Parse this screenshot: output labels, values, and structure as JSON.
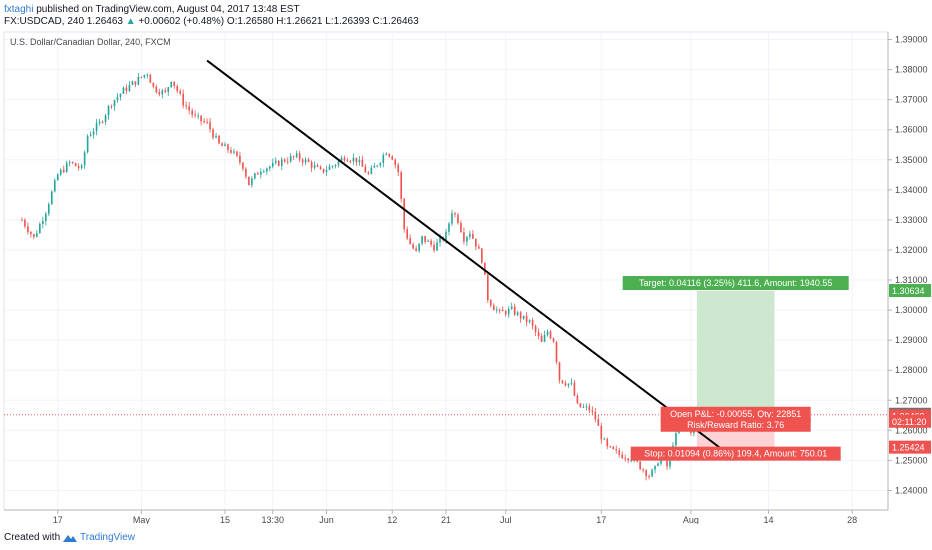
{
  "header": {
    "author": "fxtaghi",
    "published_text": "published on TradingView.com, August 04, 2017 13:48 EST",
    "symbol_line": "FX:USDCAD, 240  1.26463",
    "change_arrow": "▲",
    "change": "+0.00602 (+0.48%)",
    "ohlc": "O:1.26580 H:1.26621 L:1.26393 C:1.26463"
  },
  "pane_title": "U.S. Dollar/Canadian Dollar, 240, FXCM",
  "footer": {
    "created_with": "Created with",
    "brand": "TradingView"
  },
  "colors": {
    "up": "#26a69a",
    "down": "#ef5350",
    "target": "#c8e6c9",
    "stop": "#ffcdd2",
    "trendline": "#000000"
  },
  "chart_data": {
    "type": "candlestick",
    "title": "U.S. Dollar/Canadian Dollar, 240, FXCM",
    "ylim": [
      1.2335,
      1.3925
    ],
    "y_ticks": [
      "1.24000",
      "1.25000",
      "1.26000",
      "1.27000",
      "1.28000",
      "1.29000",
      "1.30000",
      "1.31000",
      "1.32000",
      "1.33000",
      "1.34000",
      "1.35000",
      "1.36000",
      "1.37000",
      "1.38000",
      "1.39000"
    ],
    "x_ticks": [
      {
        "label": "17",
        "day": 17
      },
      {
        "label": "May",
        "day": 31
      },
      {
        "label": "15",
        "day": 45
      },
      {
        "label": "13:30",
        "day": 53
      },
      {
        "label": "Jun",
        "day": 62
      },
      {
        "label": "12",
        "day": 73
      },
      {
        "label": "21",
        "day": 82
      },
      {
        "label": "Jul",
        "day": 92
      },
      {
        "label": "17",
        "day": 108
      },
      {
        "label": "Aug",
        "day": 123
      },
      {
        "label": "14",
        "day": 136
      },
      {
        "label": "28",
        "day": 150
      }
    ],
    "price_path": [
      [
        11,
        1.33
      ],
      [
        13,
        1.324
      ],
      [
        15,
        1.333
      ],
      [
        17,
        1.345
      ],
      [
        19,
        1.349
      ],
      [
        21,
        1.347
      ],
      [
        22,
        1.358
      ],
      [
        24,
        1.362
      ],
      [
        26,
        1.369
      ],
      [
        28,
        1.373
      ],
      [
        30,
        1.376
      ],
      [
        32,
        1.379
      ],
      [
        33,
        1.374
      ],
      [
        35,
        1.372
      ],
      [
        36,
        1.377
      ],
      [
        38,
        1.369
      ],
      [
        40,
        1.364
      ],
      [
        42,
        1.362
      ],
      [
        44,
        1.355
      ],
      [
        46,
        1.353
      ],
      [
        48,
        1.348
      ],
      [
        49,
        1.342
      ],
      [
        51,
        1.347
      ],
      [
        53,
        1.348
      ],
      [
        55,
        1.35
      ],
      [
        57,
        1.351
      ],
      [
        59,
        1.349
      ],
      [
        61,
        1.346
      ],
      [
        63,
        1.348
      ],
      [
        65,
        1.351
      ],
      [
        67,
        1.35
      ],
      [
        69,
        1.345
      ],
      [
        71,
        1.35
      ],
      [
        72,
        1.353
      ],
      [
        73,
        1.351
      ],
      [
        74,
        1.346
      ],
      [
        75,
        1.327
      ],
      [
        76,
        1.322
      ],
      [
        77,
        1.319
      ],
      [
        78,
        1.324
      ],
      [
        80,
        1.321
      ],
      [
        82,
        1.325
      ],
      [
        83,
        1.333
      ],
      [
        84,
        1.33
      ],
      [
        85,
        1.324
      ],
      [
        86,
        1.326
      ],
      [
        87,
        1.322
      ],
      [
        88,
        1.317
      ],
      [
        89,
        1.304
      ],
      [
        90,
        1.301
      ],
      [
        91,
        1.299
      ],
      [
        93,
        1.3
      ],
      [
        95,
        1.297
      ],
      [
        96,
        1.296
      ],
      [
        98,
        1.289
      ],
      [
        99,
        1.293
      ],
      [
        100,
        1.29
      ],
      [
        101,
        1.277
      ],
      [
        103,
        1.275
      ],
      [
        104,
        1.268
      ],
      [
        106,
        1.267
      ],
      [
        107,
        1.264
      ],
      [
        108,
        1.258
      ],
      [
        109,
        1.254
      ],
      [
        111,
        1.252
      ],
      [
        113,
        1.251
      ],
      [
        115,
        1.247
      ],
      [
        116,
        1.245
      ],
      [
        117,
        1.247
      ],
      [
        118,
        1.253
      ],
      [
        119,
        1.248
      ],
      [
        120,
        1.256
      ],
      [
        121,
        1.26
      ],
      [
        122,
        1.264
      ],
      [
        123,
        1.26
      ],
      [
        124,
        1.2646
      ]
    ],
    "trendline": {
      "from": [
        42,
        1.383
      ],
      "to": [
        128,
        1.254
      ]
    },
    "position": {
      "day_start": 124,
      "day_end": 137,
      "entry": 1.26518,
      "target": 1.30634,
      "stop": 1.25424,
      "target_label": "Target: 0.04116 (3.25%) 411.6, Amount: 1940.55",
      "pnl_label": "Open P&L: -0.00055, Qty: 22851",
      "rr_label": "Risk/Reward Ratio: 3.76",
      "stop_label": "Stop: 0.01094 (0.86%) 109.4, Amount: 750.01"
    },
    "price_tags": [
      {
        "label": "1.30634",
        "value": 1.30634,
        "color": "#4caf50"
      },
      {
        "label": "1.26518",
        "value": 1.26518,
        "color": "#6f6f6f"
      },
      {
        "label": "1.26463",
        "value": 1.26463,
        "color": "#ef5350"
      },
      {
        "label": "02:11:20",
        "value": 1.26285,
        "color": "#ef5350"
      },
      {
        "label": "1.25424",
        "value": 1.25424,
        "color": "#ef5350"
      }
    ]
  }
}
